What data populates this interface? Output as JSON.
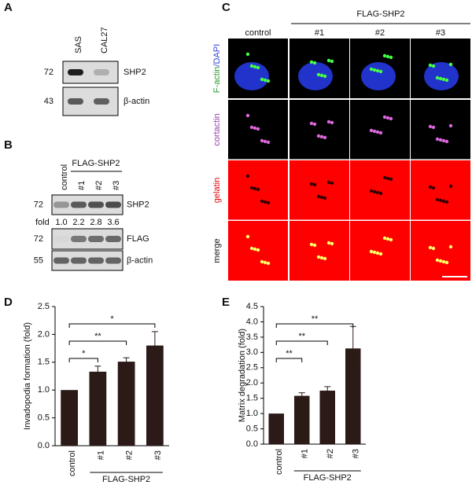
{
  "panels": {
    "A": {
      "label": "A",
      "lanes": [
        "SAS",
        "CAL27"
      ],
      "rows": [
        {
          "marker": "72",
          "protein": "SHP2"
        },
        {
          "marker": "43",
          "protein": "β-actin"
        }
      ]
    },
    "B": {
      "label": "B",
      "group": "FLAG-SHP2",
      "lanes": [
        "control",
        "#1",
        "#2",
        "#3"
      ],
      "rows": [
        {
          "marker": "72",
          "protein": "SHP2"
        },
        {
          "marker": "72",
          "protein": "FLAG"
        },
        {
          "marker": "55",
          "protein": "β-actin"
        }
      ],
      "fold_label": "fold",
      "fold": [
        "1.0",
        "2.2",
        "2.8",
        "3.6"
      ]
    },
    "C": {
      "label": "C",
      "group": "FLAG-SHP2",
      "columns": [
        "control",
        "#1",
        "#2",
        "#3"
      ],
      "rows": [
        [
          "F-actin",
          "/DAPI"
        ],
        [
          "cortactin"
        ],
        [
          "gelatin"
        ],
        [
          "merge"
        ]
      ]
    }
  },
  "chart_data": [
    {
      "type": "bar",
      "panel": "D",
      "ylabel": "Invadopodia formation (fold)",
      "group": "FLAG-SHP2",
      "categories": [
        "control",
        "#1",
        "#2",
        "#3"
      ],
      "values": [
        1.0,
        1.33,
        1.51,
        1.8
      ],
      "errors": [
        0,
        0.1,
        0.07,
        0.25
      ],
      "significance": [
        null,
        "*",
        "**",
        "*"
      ],
      "color": "#2b1a17",
      "ylim": [
        0,
        2.5
      ],
      "yticks": [
        {
          "value": 0,
          "label": "0.0"
        },
        0.5,
        {
          "value": 1,
          "label": "1.0"
        },
        1.5,
        {
          "value": 2,
          "label": "2.0"
        },
        2.5
      ]
    },
    {
      "type": "bar",
      "panel": "E",
      "ylabel": "Matrix degradation (fold)",
      "group": "FLAG-SHP2",
      "categories": [
        "control",
        "#1",
        "#2",
        "#3"
      ],
      "values": [
        1.0,
        1.58,
        1.75,
        3.13
      ],
      "errors": [
        0,
        0.1,
        0.13,
        0.72
      ],
      "significance": [
        null,
        "**",
        "**",
        "**"
      ],
      "color": "#2b1a17",
      "ylim": [
        0,
        4.5
      ],
      "yticks": [
        {
          "value": 0,
          "label": "0.0"
        },
        0.5,
        {
          "value": 1,
          "label": "1.0"
        },
        1.5,
        {
          "value": 2,
          "label": "2.0"
        },
        2.5,
        {
          "value": 3,
          "label": "3.0"
        },
        3.5,
        {
          "value": 4,
          "label": "4.0"
        },
        4.5
      ]
    }
  ]
}
